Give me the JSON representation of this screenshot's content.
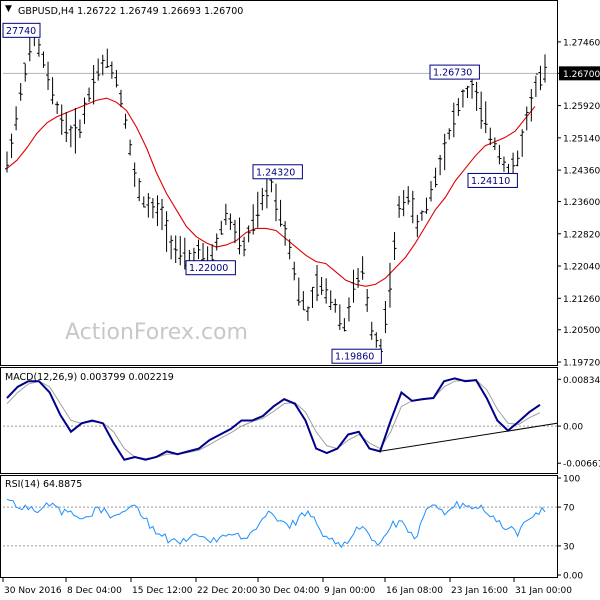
{
  "chart_data": [
    {
      "type": "ohlc",
      "header": {
        "symbol": "GBPUSD,H4",
        "open": "1.26722",
        "high": "1.26749",
        "low": "1.26693",
        "close": "1.26700"
      },
      "ylim": [
        1.1972,
        1.2828
      ],
      "yticks": [
        "1.27460",
        "1.26700",
        "1.25920",
        "1.25140",
        "1.24360",
        "1.23600",
        "1.22820",
        "1.22040",
        "1.21260",
        "1.20500",
        "1.19720"
      ],
      "current_price_label": "1.26700",
      "watermark": "ActionForex.com",
      "annotations": [
        {
          "label": "27740",
          "value": 1.2774,
          "anchor": "left"
        },
        {
          "label": "1.26730",
          "value": 1.2673,
          "anchor": "right"
        },
        {
          "label": "1.24320",
          "value": 1.2432,
          "anchor": "right"
        },
        {
          "label": "1.22000",
          "value": 1.22,
          "anchor": "right"
        },
        {
          "label": "1.19860",
          "value": 1.1986,
          "anchor": "right"
        },
        {
          "label": "1.24110",
          "value": 1.2411,
          "anchor": "right"
        }
      ],
      "price_path": [
        1.245,
        1.256,
        1.268,
        1.276,
        1.27,
        1.262,
        1.256,
        1.252,
        1.254,
        1.262,
        1.268,
        1.27,
        1.266,
        1.256,
        1.242,
        1.236,
        1.234,
        1.233,
        1.226,
        1.223,
        1.222,
        1.224,
        1.221,
        1.226,
        1.233,
        1.229,
        1.225,
        1.231,
        1.236,
        1.24,
        1.233,
        1.225,
        1.214,
        1.209,
        1.216,
        1.214,
        1.211,
        1.206,
        1.215,
        1.219,
        1.205,
        1.201,
        1.216,
        1.234,
        1.238,
        1.23,
        1.235,
        1.242,
        1.249,
        1.256,
        1.261,
        1.264,
        1.258,
        1.252,
        1.248,
        1.243,
        1.246,
        1.256,
        1.264,
        1.267
      ],
      "moving_average": [
        1.244,
        1.246,
        1.249,
        1.2525,
        1.255,
        1.2565,
        1.2575,
        1.2585,
        1.2595,
        1.2605,
        1.261,
        1.26,
        1.258,
        1.254,
        1.249,
        1.243,
        1.238,
        1.234,
        1.23,
        1.2275,
        1.226,
        1.225,
        1.2255,
        1.2265,
        1.2285,
        1.2295,
        1.2295,
        1.229,
        1.227,
        1.225,
        1.223,
        1.2215,
        1.221,
        1.219,
        1.217,
        1.216,
        1.2155,
        1.216,
        1.2175,
        1.22,
        1.2225,
        1.226,
        1.23,
        1.234,
        1.237,
        1.241,
        1.244,
        1.247,
        1.2495,
        1.2505,
        1.2515,
        1.253,
        1.256,
        1.259
      ]
    },
    {
      "type": "line",
      "title": "MACD(12,26,9) 0.003799 0.002219",
      "ylim": [
        -0.008,
        0.01
      ],
      "yticks": [
        "0.008341",
        "0.00",
        "-0.00661"
      ],
      "macd": [
        0.005,
        0.007,
        0.008,
        0.008,
        0.006,
        0.002,
        -0.001,
        0.0005,
        0.001,
        0.0005,
        -0.003,
        -0.006,
        -0.0055,
        -0.006,
        -0.0055,
        -0.0045,
        -0.005,
        -0.0045,
        -0.004,
        -0.0025,
        -0.0015,
        -0.0005,
        0.001,
        0.001,
        0.0018,
        0.0035,
        0.0048,
        0.004,
        0.001,
        -0.004,
        -0.0048,
        -0.004,
        -0.0015,
        -0.001,
        -0.004,
        -0.0045,
        0.001,
        0.006,
        0.0045,
        0.0048,
        0.005,
        0.008,
        0.0085,
        0.008,
        0.0082,
        0.005,
        0.001,
        -0.0008,
        0.0008,
        0.0025,
        0.0038
      ],
      "signal": [
        0.004,
        0.006,
        0.0075,
        0.008,
        0.007,
        0.004,
        0.001,
        0.0005,
        0.0008,
        0.0006,
        -0.001,
        -0.004,
        -0.0055,
        -0.0058,
        -0.0056,
        -0.005,
        -0.005,
        -0.0047,
        -0.0043,
        -0.0033,
        -0.0022,
        -0.0012,
        0.0,
        0.0008,
        0.0014,
        0.0026,
        0.004,
        0.0042,
        0.0025,
        -0.001,
        -0.0035,
        -0.004,
        -0.0025,
        -0.0015,
        -0.003,
        -0.004,
        -0.001,
        0.0035,
        0.0045,
        0.0047,
        0.005,
        0.007,
        0.008,
        0.0082,
        0.0082,
        0.0065,
        0.003,
        0.0005,
        0.0003,
        0.0015,
        0.0024
      ],
      "trendline": [
        [
          -0.0045,
          0.0005
        ]
      ],
      "trendline_span": [
        0.68,
        1.0
      ]
    },
    {
      "type": "line",
      "title": "RSI(14) 64.8875",
      "ylim": [
        0,
        100
      ],
      "yticks": [
        "100",
        "70",
        "30",
        "0.00"
      ],
      "reference_lines": [
        70,
        30
      ],
      "values": [
        78,
        70,
        72,
        66,
        70,
        74,
        62,
        66,
        58,
        60,
        70,
        64,
        62,
        66,
        72,
        58,
        50,
        40,
        36,
        32,
        38,
        40,
        36,
        34,
        40,
        42,
        38,
        46,
        58,
        64,
        56,
        48,
        60,
        66,
        52,
        40,
        32,
        34,
        42,
        50,
        36,
        34,
        48,
        56,
        44,
        40,
        68,
        72,
        62,
        70,
        74,
        68,
        72,
        60,
        56,
        48,
        40,
        56,
        64,
        65
      ]
    }
  ],
  "x_axis": {
    "tick_labels": [
      "30 Nov 2016",
      "8 Dec 04:00",
      "15 Dec 12:00",
      "22 Dec 20:00",
      "30 Dec 04:00",
      "9 Jan 00:00",
      "16 Jan 08:00",
      "23 Jan 16:00",
      "31 Jan 00:00"
    ]
  }
}
